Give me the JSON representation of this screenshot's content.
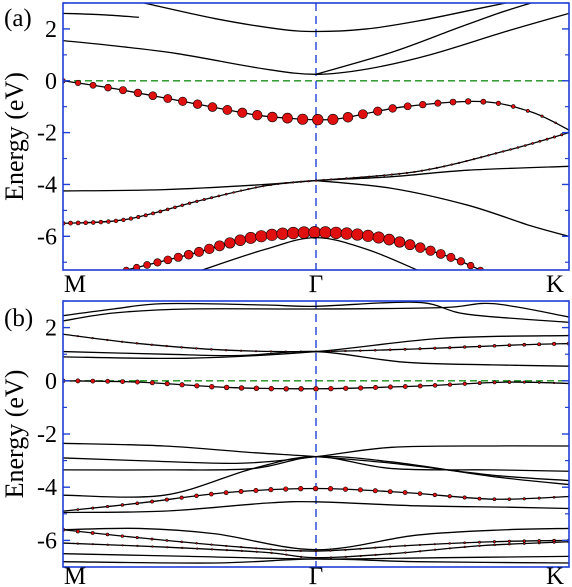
{
  "chart_data": [
    {
      "type": "line",
      "panel_label": "(a)",
      "ylabel": "Energy (eV)",
      "ylim": [
        -7.3,
        3.0
      ],
      "yticks": [
        2,
        0,
        -2,
        -4,
        -6
      ],
      "ytick_labels": [
        "2",
        "0",
        "-2",
        "-4",
        "-6"
      ],
      "xticks": [
        0,
        1,
        2
      ],
      "xtick_labels": [
        "M",
        "Γ",
        "K"
      ],
      "xlim": [
        0,
        2
      ],
      "fermi_level": 0,
      "gamma_marker": 1,
      "colors": {
        "frame": "#1f3fd6",
        "bands": "#000000",
        "fermi": "#1a8f1a",
        "gamma": "#1f3fd6",
        "weight_marker": "#e01010"
      },
      "series": [
        {
          "points": [
            [
              0,
              1.55
            ],
            [
              0.2,
              1.35
            ],
            [
              0.45,
              1.05
            ],
            [
              0.8,
              0.45
            ],
            [
              1,
              0.25
            ],
            [
              1.2,
              0.45
            ],
            [
              1.45,
              1.0
            ],
            [
              1.75,
              1.9
            ],
            [
              2,
              2.6
            ]
          ]
        },
        {
          "points": [
            [
              0.32,
              3.0
            ],
            [
              0.6,
              2.4
            ],
            [
              0.85,
              2.0
            ],
            [
              1,
              1.9
            ],
            [
              1.2,
              2.0
            ],
            [
              1.4,
              2.3
            ],
            [
              1.65,
              2.8
            ],
            [
              1.75,
              3.0
            ]
          ]
        },
        {
          "points": [
            [
              0,
              2.6
            ],
            [
              0.15,
              2.55
            ],
            [
              0.3,
              2.45
            ]
          ]
        },
        {
          "points": [
            [
              1.0,
              0.25
            ],
            [
              1.3,
              1.1
            ],
            [
              1.55,
              2.0
            ],
            [
              1.72,
              2.6
            ],
            [
              1.85,
              3.0
            ]
          ]
        },
        {
          "points": [
            [
              0,
              0.0
            ],
            [
              0.2,
              -0.3
            ],
            [
              0.45,
              -0.75
            ],
            [
              0.75,
              -1.3
            ],
            [
              0.9,
              -1.45
            ],
            [
              1,
              -1.5
            ],
            [
              1.1,
              -1.45
            ],
            [
              1.35,
              -1.0
            ],
            [
              1.65,
              -0.8
            ],
            [
              1.85,
              -1.2
            ],
            [
              2,
              -1.9
            ]
          ],
          "weights": [
            0.4,
            0.6,
            0.7,
            0.8,
            0.85,
            0.9,
            0.85,
            0.6,
            0.45,
            0.25,
            0.1
          ]
        },
        {
          "points": [
            [
              0,
              -4.25
            ],
            [
              0.4,
              -4.2
            ],
            [
              0.8,
              -4.0
            ],
            [
              1,
              -3.85
            ],
            [
              1.3,
              -3.7
            ],
            [
              1.6,
              -3.45
            ],
            [
              2,
              -3.3
            ]
          ]
        },
        {
          "points": [
            [
              1,
              -3.85
            ],
            [
              1.3,
              -4.15
            ],
            [
              1.6,
              -4.8
            ],
            [
              1.85,
              -5.6
            ],
            [
              2,
              -6.0
            ]
          ]
        },
        {
          "points": [
            [
              0,
              -5.5
            ],
            [
              0.25,
              -5.35
            ],
            [
              0.55,
              -4.6
            ],
            [
              0.8,
              -4.05
            ],
            [
              1,
              -3.85
            ]
          ],
          "weights": [
            0.35,
            0.3,
            0.2,
            0.1,
            0.05
          ]
        },
        {
          "points": [
            [
              1,
              -3.85
            ],
            [
              1.4,
              -3.5
            ],
            [
              1.75,
              -2.7
            ],
            [
              2,
              -2.0
            ]
          ],
          "weights": [
            0.05,
            0.1,
            0.15,
            0.2
          ]
        },
        {
          "points": [
            [
              0.25,
              -7.3
            ],
            [
              0.5,
              -6.7
            ],
            [
              0.75,
              -6.05
            ],
            [
              1,
              -5.85
            ],
            [
              1.25,
              -6.05
            ],
            [
              1.5,
              -6.7
            ],
            [
              1.65,
              -7.3
            ]
          ],
          "weights": [
            0.5,
            0.75,
            0.95,
            1.0,
            0.95,
            0.75,
            0.5
          ]
        },
        {
          "points": [
            [
              0.55,
              -7.3
            ],
            [
              0.8,
              -6.5
            ],
            [
              1,
              -6.05
            ],
            [
              1.2,
              -6.5
            ],
            [
              1.4,
              -7.3
            ]
          ]
        }
      ]
    },
    {
      "type": "line",
      "panel_label": "(b)",
      "ylabel": "Energy (eV)",
      "ylim": [
        -7.0,
        3.0
      ],
      "yticks": [
        2,
        0,
        -2,
        -4,
        -6
      ],
      "ytick_labels": [
        "2",
        "0",
        "-2",
        "-4",
        "-6"
      ],
      "xticks": [
        0,
        1,
        2
      ],
      "xtick_labels": [
        "M",
        "Γ",
        "K"
      ],
      "xlim": [
        0,
        2
      ],
      "fermi_level": 0,
      "gamma_marker": 1,
      "colors": {
        "frame": "#1f3fd6",
        "bands": "#000000",
        "fermi": "#1a8f1a",
        "gamma": "#1f3fd6",
        "weight_marker": "#e01010"
      },
      "series": [
        {
          "points": [
            [
              0,
              2.25
            ],
            [
              0.2,
              2.55
            ],
            [
              0.5,
              2.7
            ],
            [
              1,
              2.7
            ],
            [
              1.5,
              2.75
            ],
            [
              1.7,
              2.9
            ],
            [
              2,
              2.4
            ]
          ]
        },
        {
          "points": [
            [
              0,
              2.45
            ],
            [
              0.2,
              2.7
            ],
            [
              0.4,
              2.9
            ],
            [
              0.8,
              2.85
            ],
            [
              1,
              2.8
            ],
            [
              1.4,
              2.95
            ],
            [
              1.6,
              2.5
            ],
            [
              2,
              2.2
            ]
          ]
        },
        {
          "points": [
            [
              0,
              1.75
            ],
            [
              0.3,
              1.4
            ],
            [
              0.65,
              1.15
            ],
            [
              1,
              1.1
            ],
            [
              1.4,
              1.2
            ],
            [
              1.8,
              1.35
            ],
            [
              2,
              1.4
            ]
          ],
          "weights": [
            0.1,
            0.15,
            0.15,
            0.1,
            0.2,
            0.25,
            0.3
          ]
        },
        {
          "points": [
            [
              0,
              1.1
            ],
            [
              0.4,
              1.0
            ],
            [
              0.7,
              0.95
            ],
            [
              1,
              1.1
            ],
            [
              1.35,
              0.7
            ],
            [
              1.7,
              0.6
            ],
            [
              2,
              0.55
            ]
          ]
        },
        {
          "points": [
            [
              0,
              0.9
            ],
            [
              0.5,
              0.85
            ],
            [
              1,
              1.1
            ],
            [
              1.5,
              1.6
            ],
            [
              2,
              1.7
            ]
          ]
        },
        {
          "points": [
            [
              0,
              0.0
            ],
            [
              0.3,
              -0.05
            ],
            [
              0.65,
              -0.25
            ],
            [
              1,
              -0.3
            ],
            [
              1.4,
              -0.2
            ],
            [
              1.75,
              -0.05
            ],
            [
              2,
              -0.1
            ]
          ],
          "weights": [
            0.35,
            0.35,
            0.4,
            0.4,
            0.35,
            0.25,
            0.1
          ]
        },
        {
          "points": [
            [
              0,
              -2.35
            ],
            [
              0.4,
              -2.45
            ],
            [
              0.75,
              -2.7
            ],
            [
              1,
              -2.85
            ],
            [
              1.3,
              -3.1
            ],
            [
              1.7,
              -3.55
            ],
            [
              2,
              -3.75
            ]
          ]
        },
        {
          "points": [
            [
              0,
              -2.9
            ],
            [
              0.3,
              -3.0
            ],
            [
              0.7,
              -3.1
            ],
            [
              1,
              -2.85
            ],
            [
              1.3,
              -2.5
            ],
            [
              1.7,
              -2.45
            ],
            [
              2,
              -2.45
            ]
          ]
        },
        {
          "points": [
            [
              0,
              -3.35
            ],
            [
              0.4,
              -3.35
            ],
            [
              0.75,
              -3.3
            ],
            [
              1,
              -2.85
            ],
            [
              1.3,
              -3.05
            ],
            [
              1.7,
              -3.6
            ],
            [
              2,
              -3.9
            ]
          ]
        },
        {
          "points": [
            [
              0,
              -4.3
            ],
            [
              0.4,
              -4.3
            ],
            [
              0.75,
              -3.3
            ],
            [
              1,
              -2.85
            ],
            [
              1.3,
              -3.3
            ],
            [
              1.7,
              -3.35
            ],
            [
              2,
              -3.4
            ]
          ]
        },
        {
          "points": [
            [
              0,
              -4.9
            ],
            [
              0.3,
              -4.6
            ],
            [
              0.65,
              -4.2
            ],
            [
              1,
              -4.05
            ],
            [
              1.35,
              -4.2
            ],
            [
              1.7,
              -4.45
            ],
            [
              2,
              -4.35
            ]
          ],
          "weights": [
            0.15,
            0.25,
            0.35,
            0.4,
            0.35,
            0.25,
            0.15
          ]
        },
        {
          "points": [
            [
              0,
              -4.95
            ],
            [
              0.4,
              -4.9
            ],
            [
              0.8,
              -4.6
            ],
            [
              1,
              -4.55
            ],
            [
              1.4,
              -4.7
            ],
            [
              1.75,
              -4.75
            ],
            [
              2,
              -4.8
            ]
          ]
        },
        {
          "points": [
            [
              0,
              -5.6
            ],
            [
              0.3,
              -5.55
            ],
            [
              0.6,
              -5.75
            ],
            [
              1,
              -6.35
            ],
            [
              1.4,
              -5.8
            ],
            [
              1.75,
              -5.6
            ],
            [
              2,
              -5.55
            ]
          ]
        },
        {
          "points": [
            [
              0,
              -5.6
            ],
            [
              0.3,
              -5.9
            ],
            [
              0.7,
              -6.25
            ],
            [
              1,
              -6.4
            ],
            [
              1.35,
              -6.2
            ],
            [
              1.7,
              -6.05
            ],
            [
              2,
              -6.0
            ]
          ],
          "weights": [
            0.3,
            0.2,
            0.1,
            0.05,
            0.1,
            0.2,
            0.25
          ]
        },
        {
          "points": [
            [
              0,
              -6.1
            ],
            [
              0.4,
              -6.25
            ],
            [
              0.8,
              -6.45
            ],
            [
              1,
              -6.65
            ],
            [
              1.3,
              -6.5
            ],
            [
              1.65,
              -6.2
            ],
            [
              2,
              -6.05
            ]
          ],
          "weights": [
            0.05,
            0.05,
            0.05,
            0.05,
            0.1,
            0.15,
            0.2
          ]
        },
        {
          "points": [
            [
              0,
              -6.5
            ],
            [
              0.5,
              -6.6
            ],
            [
              1,
              -6.7
            ],
            [
              1.5,
              -6.65
            ],
            [
              2,
              -6.6
            ]
          ]
        },
        {
          "points": [
            [
              0,
              -6.8
            ],
            [
              0.6,
              -6.85
            ],
            [
              1,
              -6.7
            ],
            [
              1.4,
              -6.8
            ],
            [
              2,
              -6.85
            ]
          ]
        }
      ]
    }
  ]
}
